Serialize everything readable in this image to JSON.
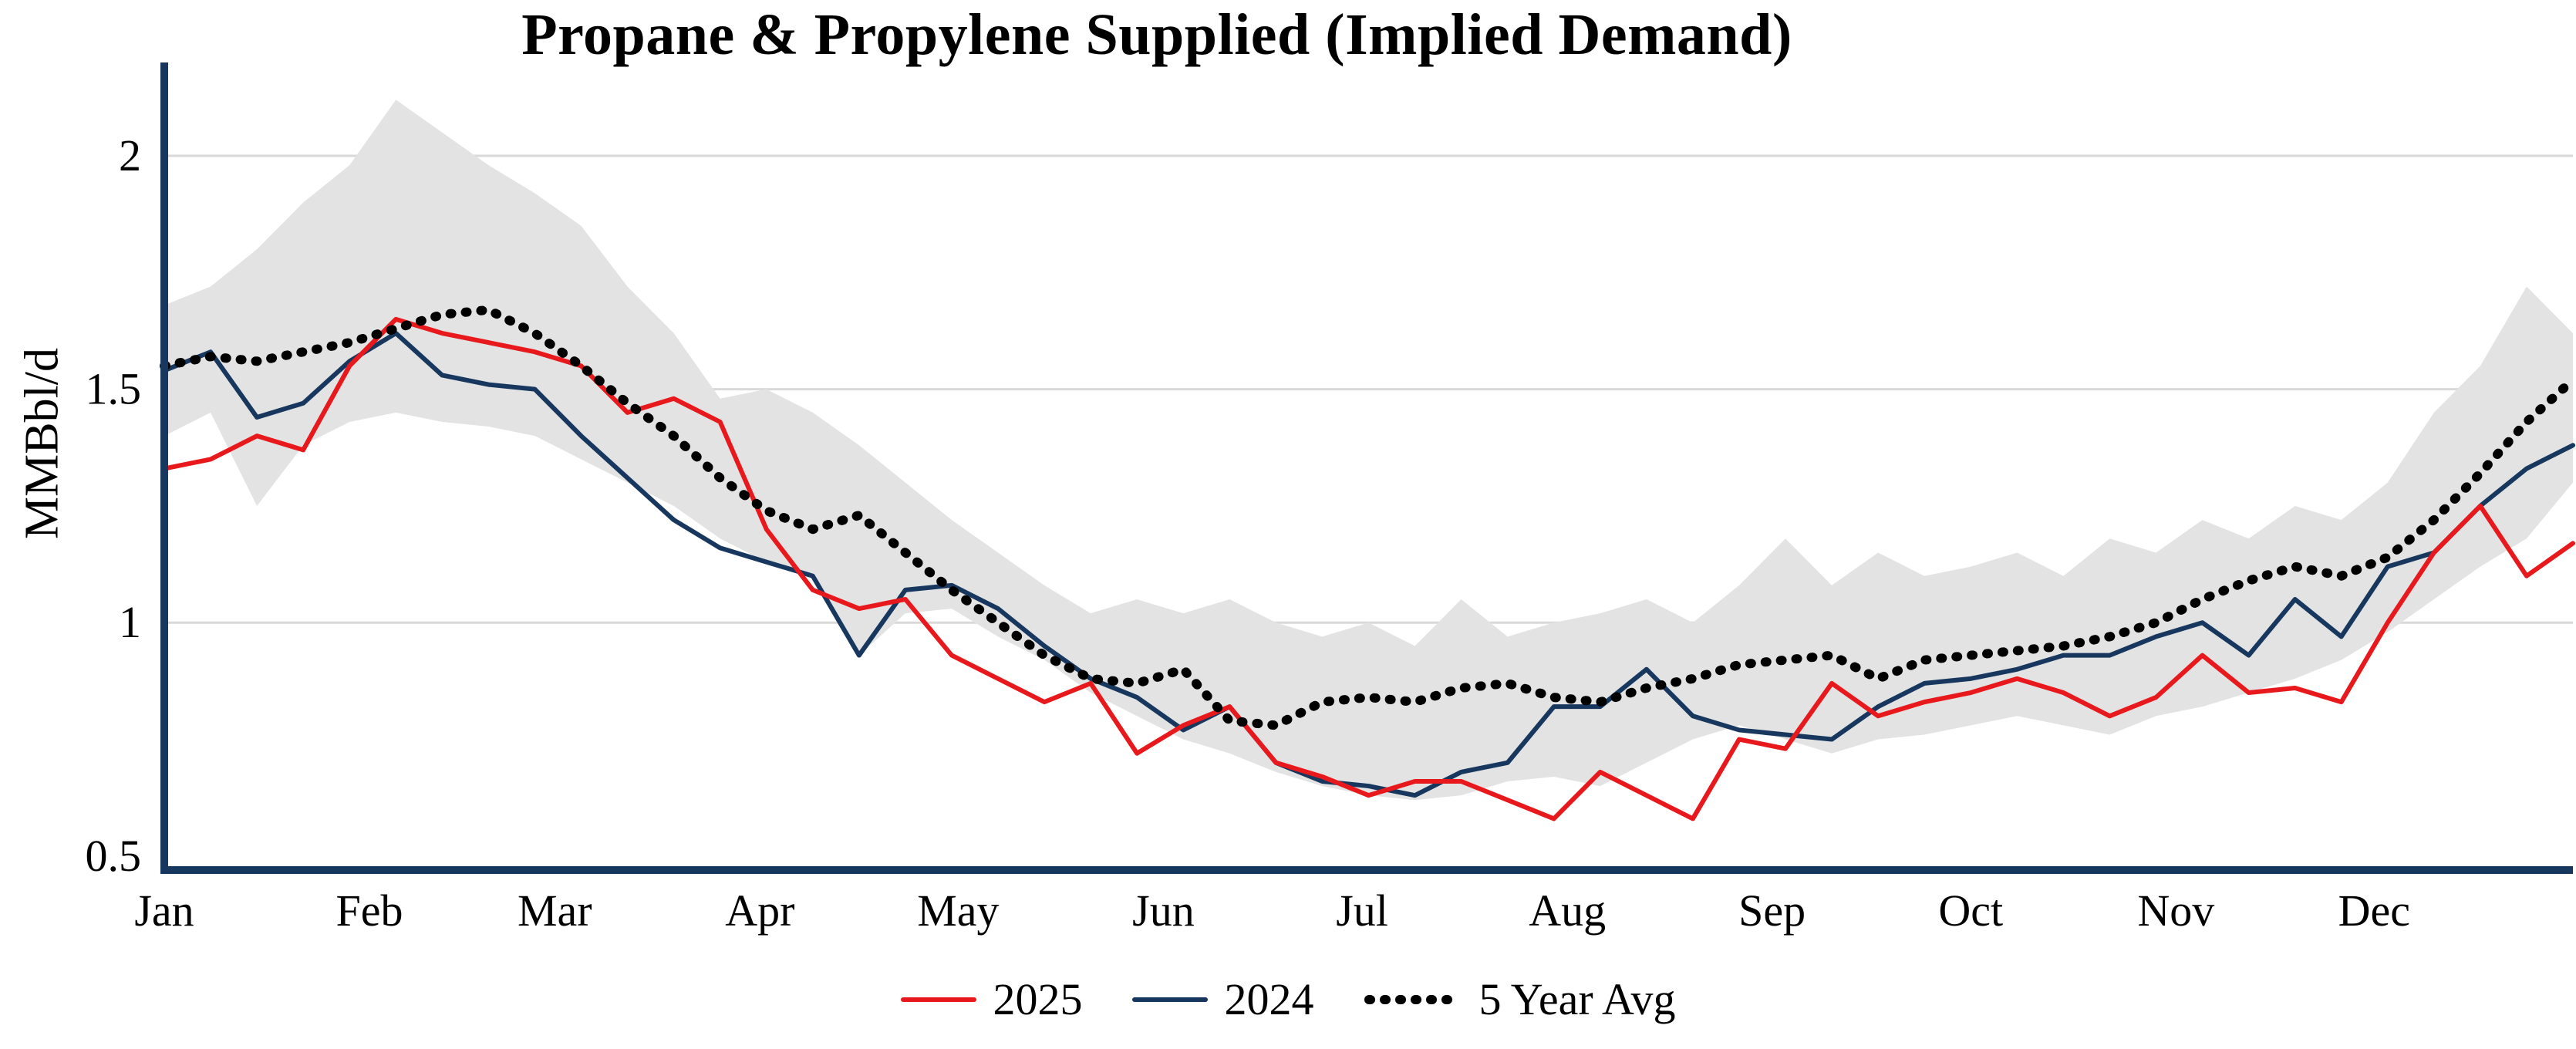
{
  "title": "Propane & Propylene Supplied (Implied Demand)",
  "y_axis_label": "MMBbl/d",
  "colors": {
    "red_2025": "#e8191c",
    "navy_2024": "#17375e",
    "five_year_avg": "#000000",
    "band_fill": "#e3e3e3",
    "axis": "#17375e",
    "grid": "#d9d9d9"
  },
  "chart_data": {
    "type": "line",
    "title": "Propane & Propylene Supplied (Implied Demand)",
    "xlabel": "",
    "ylabel": "MMBbl/d",
    "ylim": [
      0.47,
      2.2
    ],
    "yticks": [
      0.5,
      1,
      1.5,
      2
    ],
    "ytick_labels": [
      "0.5",
      "1",
      "1.5",
      "2"
    ],
    "grid": "horizontal",
    "legend_position": "bottom",
    "x_axis": {
      "unit": "weeks",
      "weeks_total": 52,
      "months": [
        "Jan",
        "Feb",
        "Mar",
        "Apr",
        "May",
        "Jun",
        "Jul",
        "Aug",
        "Sep",
        "Oct",
        "Nov",
        "Dec"
      ],
      "month_start_weeks": [
        0,
        4.43,
        8.43,
        12.86,
        17.14,
        21.57,
        25.86,
        30.29,
        34.71,
        39.0,
        43.43,
        47.71
      ]
    },
    "series": [
      {
        "name": "2025",
        "color": "#e8191c",
        "style": "solid",
        "values": [
          1.33,
          1.35,
          1.4,
          1.37,
          1.55,
          1.65,
          1.62,
          1.6,
          1.58,
          1.55,
          1.45,
          1.48,
          1.43,
          1.2,
          1.07,
          1.03,
          1.05,
          0.93,
          0.88,
          0.83,
          0.87,
          0.72,
          0.78,
          0.82,
          0.7,
          0.67,
          0.63,
          0.66,
          0.66,
          0.62,
          0.58,
          0.68,
          0.63,
          0.58,
          0.75,
          0.73,
          0.87,
          0.8,
          0.83,
          0.85,
          0.88,
          0.85,
          0.8,
          0.84,
          0.93,
          0.85,
          0.86,
          0.83,
          1.0,
          1.15,
          1.25,
          1.1,
          1.17
        ]
      },
      {
        "name": "2024",
        "color": "#17375e",
        "style": "solid",
        "values": [
          1.54,
          1.58,
          1.44,
          1.47,
          1.56,
          1.62,
          1.53,
          1.51,
          1.5,
          1.4,
          1.31,
          1.22,
          1.16,
          1.13,
          1.1,
          0.93,
          1.07,
          1.08,
          1.03,
          0.95,
          0.88,
          0.84,
          0.77,
          0.82,
          0.7,
          0.66,
          0.65,
          0.63,
          0.68,
          0.7,
          0.82,
          0.82,
          0.9,
          0.8,
          0.77,
          0.76,
          0.75,
          0.82,
          0.87,
          0.88,
          0.9,
          0.93,
          0.93,
          0.97,
          1.0,
          0.93,
          1.05,
          0.97,
          1.12,
          1.15,
          1.25,
          1.33,
          1.38
        ]
      },
      {
        "name": "5 Year Avg",
        "color": "#000000",
        "style": "dotted",
        "values": [
          1.55,
          1.57,
          1.56,
          1.58,
          1.6,
          1.63,
          1.66,
          1.67,
          1.62,
          1.55,
          1.47,
          1.4,
          1.31,
          1.24,
          1.2,
          1.23,
          1.15,
          1.07,
          1.0,
          0.93,
          0.88,
          0.87,
          0.9,
          0.79,
          0.78,
          0.83,
          0.84,
          0.83,
          0.86,
          0.87,
          0.84,
          0.83,
          0.86,
          0.88,
          0.91,
          0.92,
          0.93,
          0.88,
          0.92,
          0.93,
          0.94,
          0.95,
          0.97,
          1.0,
          1.05,
          1.09,
          1.12,
          1.1,
          1.14,
          1.22,
          1.32,
          1.43,
          1.52
        ]
      }
    ],
    "band": {
      "color": "#e3e3e3",
      "upper": [
        1.68,
        1.72,
        1.8,
        1.9,
        1.98,
        2.12,
        2.05,
        1.98,
        1.92,
        1.85,
        1.72,
        1.62,
        1.48,
        1.5,
        1.45,
        1.38,
        1.3,
        1.22,
        1.15,
        1.08,
        1.02,
        1.05,
        1.02,
        1.05,
        1.0,
        0.97,
        1.0,
        0.95,
        1.05,
        0.97,
        1.0,
        1.02,
        1.05,
        1.0,
        1.08,
        1.18,
        1.08,
        1.15,
        1.1,
        1.12,
        1.15,
        1.1,
        1.18,
        1.15,
        1.22,
        1.18,
        1.25,
        1.22,
        1.3,
        1.45,
        1.55,
        1.72,
        1.62
      ],
      "lower": [
        1.4,
        1.45,
        1.25,
        1.38,
        1.43,
        1.45,
        1.43,
        1.42,
        1.4,
        1.35,
        1.3,
        1.25,
        1.18,
        1.13,
        1.1,
        0.93,
        1.02,
        1.03,
        0.97,
        0.92,
        0.85,
        0.8,
        0.75,
        0.72,
        0.68,
        0.65,
        0.63,
        0.62,
        0.63,
        0.66,
        0.67,
        0.65,
        0.7,
        0.75,
        0.78,
        0.75,
        0.72,
        0.75,
        0.76,
        0.78,
        0.8,
        0.78,
        0.76,
        0.8,
        0.82,
        0.85,
        0.88,
        0.92,
        0.98,
        1.05,
        1.12,
        1.18,
        1.3
      ]
    }
  }
}
